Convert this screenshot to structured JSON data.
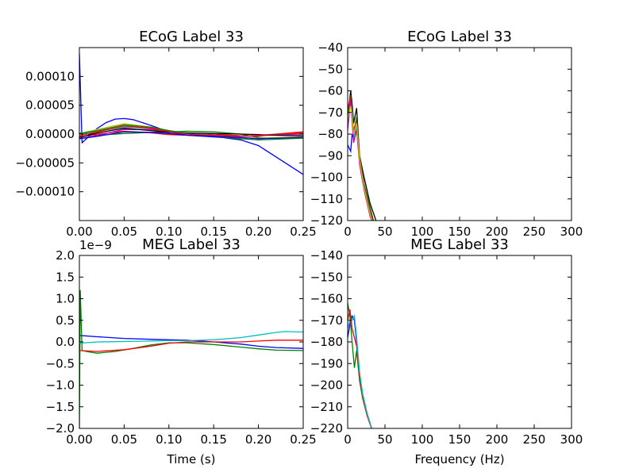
{
  "chart_data": [
    {
      "id": "ecog-time",
      "type": "line",
      "title": "ECoG Label 33",
      "xlabel": "",
      "ylabel": "",
      "xlim": [
        0,
        0.25
      ],
      "ylim": [
        -0.00015,
        0.00015
      ],
      "xticks": [
        0.0,
        0.05,
        0.1,
        0.15,
        0.2,
        0.25
      ],
      "xtick_labels": [
        "0.00",
        "0.05",
        "0.10",
        "0.15",
        "0.20",
        "0.25"
      ],
      "yticks": [
        -0.0001,
        -5e-05,
        0.0,
        5e-05,
        0.0001
      ],
      "ytick_labels": [
        "−0.00010",
        "−0.00005",
        "0.00000",
        "0.00005",
        "0.00010"
      ],
      "offset_text": "",
      "grid": false,
      "series": [
        {
          "color": "#0000ff",
          "x": [
            0,
            0.003,
            0.01,
            0.02,
            0.03,
            0.04,
            0.05,
            0.06,
            0.08,
            0.1,
            0.12,
            0.14,
            0.16,
            0.18,
            0.2,
            0.21,
            0.22,
            0.23,
            0.24,
            0.25
          ],
          "y": [
            0.00014,
            -1.5e-05,
            -5e-06,
            1e-05,
            2e-05,
            2.6e-05,
            2.7e-05,
            2.5e-05,
            1.5e-05,
            4e-06,
            -2e-06,
            -4e-06,
            -6e-06,
            -1e-05,
            -2e-05,
            -3e-05,
            -4e-05,
            -5e-05,
            -6e-05,
            -7e-05
          ]
        },
        {
          "color": "#008000",
          "x": [
            0,
            0.02,
            0.05,
            0.08,
            0.1,
            0.12,
            0.15,
            0.18,
            0.2,
            0.22,
            0.25
          ],
          "y": [
            2e-06,
            -2e-06,
            1e-06,
            3e-06,
            4e-06,
            5e-06,
            4e-06,
            0.0,
            -6e-06,
            -8e-06,
            -5e-06
          ]
        },
        {
          "color": "#ff0000",
          "x": [
            0,
            0.02,
            0.05,
            0.08,
            0.1,
            0.12,
            0.15,
            0.18,
            0.2,
            0.22,
            0.25
          ],
          "y": [
            -5e-06,
            0.0,
            5e-06,
            2e-06,
            -1e-06,
            -2e-06,
            0.0,
            -3e-06,
            -4e-06,
            0.0,
            4e-06
          ]
        },
        {
          "color": "#00bfbf",
          "x": [
            0,
            0.02,
            0.05,
            0.08,
            0.1,
            0.12,
            0.15,
            0.18,
            0.2,
            0.22,
            0.25
          ],
          "y": [
            0.0,
            5e-06,
            1.2e-05,
            1e-05,
            6e-06,
            2e-06,
            -2e-06,
            -4e-06,
            -3e-06,
            -1e-06,
            1e-06
          ]
        },
        {
          "color": "#bf00bf",
          "x": [
            0,
            0.02,
            0.05,
            0.08,
            0.1,
            0.12,
            0.15,
            0.18,
            0.2,
            0.22,
            0.25
          ],
          "y": [
            -8e-06,
            -2e-06,
            8e-06,
            8e-06,
            4e-06,
            1e-06,
            -2e-06,
            -4e-06,
            -3e-06,
            -1e-06,
            0.0
          ]
        },
        {
          "color": "#bfbf00",
          "x": [
            0,
            0.02,
            0.05,
            0.08,
            0.1,
            0.12,
            0.15,
            0.18,
            0.2,
            0.22,
            0.25
          ],
          "y": [
            1e-06,
            8e-06,
            1.8e-05,
            1.2e-05,
            6e-06,
            1e-06,
            -3e-06,
            -6e-06,
            -7e-06,
            -6e-06,
            -4e-06
          ]
        },
        {
          "color": "#000000",
          "x": [
            0,
            0.02,
            0.05,
            0.08,
            0.1,
            0.12,
            0.15,
            0.18,
            0.2,
            0.22,
            0.25
          ],
          "y": [
            -6e-06,
            2e-06,
            1e-05,
            6e-06,
            3e-06,
            2e-06,
            1e-06,
            0.0,
            -1e-06,
            -2e-06,
            -3e-06
          ]
        },
        {
          "color": "#008000",
          "x": [
            0,
            0.02,
            0.05,
            0.08,
            0.1,
            0.12,
            0.15,
            0.18,
            0.2,
            0.22,
            0.25
          ],
          "y": [
            1e-06,
            6e-06,
            1.6e-05,
            1.2e-05,
            6e-06,
            1e-06,
            -4e-06,
            -8e-06,
            -1e-05,
            -9e-06,
            -7e-06
          ]
        },
        {
          "color": "#ff0000",
          "x": [
            0,
            0.02,
            0.05,
            0.08,
            0.1,
            0.12,
            0.15,
            0.18,
            0.2,
            0.22,
            0.25
          ],
          "y": [
            -3e-06,
            4e-06,
            1.4e-05,
            1e-05,
            4e-06,
            0.0,
            -3e-06,
            -4e-06,
            -2e-06,
            0.0,
            2e-06
          ]
        },
        {
          "color": "#0000ff",
          "x": [
            0,
            0.02,
            0.05,
            0.08,
            0.1,
            0.12,
            0.15,
            0.18,
            0.2,
            0.22,
            0.25
          ],
          "y": [
            -8e-06,
            -4e-06,
            4e-06,
            3e-06,
            1e-06,
            -2e-06,
            -4e-06,
            -6e-06,
            -8e-06,
            -7e-06,
            -6e-06
          ]
        }
      ]
    },
    {
      "id": "ecog-psd",
      "type": "line",
      "title": "ECoG Label 33",
      "xlabel": "",
      "ylabel": "",
      "xlim": [
        0,
        300
      ],
      "ylim": [
        -120,
        -40
      ],
      "xticks": [
        0,
        50,
        100,
        150,
        200,
        250,
        300
      ],
      "xtick_labels": [
        "0",
        "50",
        "100",
        "150",
        "200",
        "250",
        "300"
      ],
      "yticks": [
        -120,
        -110,
        -100,
        -90,
        -80,
        -70,
        -60,
        -50,
        -40
      ],
      "ytick_labels": [
        "−120",
        "−110",
        "−100",
        "−90",
        "−80",
        "−70",
        "−60",
        "−50",
        "−40"
      ],
      "offset_text": "",
      "grid": false,
      "series": [
        {
          "color": "#000000",
          "x": [
            0,
            4,
            6,
            8,
            12,
            16,
            22,
            30,
            40
          ],
          "y": [
            -72,
            -60,
            -66,
            -75,
            -68,
            -90,
            -100,
            -112,
            -122
          ]
        },
        {
          "color": "#0000ff",
          "x": [
            0,
            4,
            6,
            8,
            12,
            16,
            22,
            30,
            36
          ],
          "y": [
            -85,
            -88,
            -80,
            -82,
            -78,
            -92,
            -104,
            -114,
            -122
          ]
        },
        {
          "color": "#008000",
          "x": [
            0,
            4,
            6,
            8,
            12,
            16,
            22,
            30,
            36
          ],
          "y": [
            -70,
            -62,
            -70,
            -80,
            -72,
            -90,
            -103,
            -114,
            -122
          ]
        },
        {
          "color": "#ff0000",
          "x": [
            0,
            4,
            6,
            8,
            12,
            16,
            22,
            30,
            36
          ],
          "y": [
            -68,
            -63,
            -72,
            -78,
            -74,
            -91,
            -104,
            -116,
            -122
          ]
        },
        {
          "color": "#00bfbf",
          "x": [
            0,
            4,
            6,
            8,
            12,
            16,
            22,
            30,
            34
          ],
          "y": [
            -75,
            -66,
            -70,
            -82,
            -76,
            -93,
            -105,
            -117,
            -122
          ]
        },
        {
          "color": "#bf00bf",
          "x": [
            0,
            4,
            6,
            8,
            12,
            16,
            22,
            30,
            34
          ],
          "y": [
            -78,
            -64,
            -74,
            -84,
            -78,
            -94,
            -106,
            -118,
            -122
          ]
        },
        {
          "color": "#bfbf00",
          "x": [
            0,
            4,
            6,
            8,
            12,
            16,
            22,
            30,
            34
          ],
          "y": [
            -73,
            -67,
            -71,
            -80,
            -75,
            -92,
            -105,
            -117,
            -122
          ]
        }
      ]
    },
    {
      "id": "meg-time",
      "type": "line",
      "title": "MEG Label 33",
      "xlabel": "Time (s)",
      "ylabel": "",
      "xlim": [
        0,
        0.25
      ],
      "ylim": [
        -2e-09,
        2e-09
      ],
      "xticks": [
        0.0,
        0.05,
        0.1,
        0.15,
        0.2,
        0.25
      ],
      "xtick_labels": [
        "0.00",
        "0.05",
        "0.10",
        "0.15",
        "0.20",
        "0.25"
      ],
      "yticks": [
        -2e-09,
        -1.5e-09,
        -1e-09,
        -5e-10,
        0.0,
        5e-10,
        1e-09,
        1.5e-09,
        2e-09
      ],
      "ytick_labels": [
        "−2.0",
        "−1.5",
        "−1.0",
        "−0.5",
        "0.0",
        "0.5",
        "1.0",
        "1.5",
        "2.0"
      ],
      "offset_text": "1e−9",
      "grid": false,
      "series": [
        {
          "color": "#0000ff",
          "x": [
            0,
            0.02,
            0.05,
            0.08,
            0.1,
            0.12,
            0.15,
            0.18,
            0.2,
            0.22,
            0.25
          ],
          "y": [
            1.5e-10,
            1.2e-10,
            8e-11,
            6e-11,
            5e-11,
            4e-11,
            0.0,
            -5e-11,
            -1e-10,
            -1.3e-10,
            -1.5e-10
          ]
        },
        {
          "color": "#008000",
          "x": [
            0,
            0.001,
            0.003,
            0.01,
            0.02,
            0.04,
            0.06,
            0.08,
            0.1,
            0.12,
            0.15,
            0.18,
            0.2,
            0.22,
            0.25
          ],
          "y": [
            -2e-09,
            1.2e-09,
            -2e-10,
            -2.3e-10,
            -2.6e-10,
            -2.2e-10,
            -1.5e-10,
            -7e-11,
            -2e-11,
            -2e-11,
            -6e-11,
            -1.2e-10,
            -1.6e-10,
            -1.9e-10,
            -2e-10
          ]
        },
        {
          "color": "#ff0000",
          "x": [
            0,
            0.02,
            0.05,
            0.08,
            0.1,
            0.12,
            0.15,
            0.18,
            0.2,
            0.22,
            0.25
          ],
          "y": [
            -2e-10,
            -2.2e-10,
            -1.8e-10,
            -1e-10,
            -3e-11,
            0.0,
            0.0,
            0.0,
            2e-11,
            4e-11,
            4e-11
          ]
        },
        {
          "color": "#00bfbf",
          "x": [
            0,
            0.02,
            0.05,
            0.08,
            0.1,
            0.12,
            0.15,
            0.18,
            0.2,
            0.22,
            0.23,
            0.25
          ],
          "y": [
            -3e-11,
            0.0,
            1e-11,
            2e-11,
            3e-11,
            3e-11,
            5e-11,
            1e-10,
            1.6e-10,
            2.2e-10,
            2.4e-10,
            2.3e-10
          ]
        }
      ]
    },
    {
      "id": "meg-psd",
      "type": "line",
      "title": "MEG Label 33",
      "xlabel": "Frequency (Hz)",
      "ylabel": "",
      "xlim": [
        0,
        300
      ],
      "ylim": [
        -220,
        -140
      ],
      "xticks": [
        0,
        50,
        100,
        150,
        200,
        250,
        300
      ],
      "xtick_labels": [
        "0",
        "50",
        "100",
        "150",
        "200",
        "250",
        "300"
      ],
      "yticks": [
        -220,
        -210,
        -200,
        -190,
        -180,
        -170,
        -160,
        -150,
        -140
      ],
      "ytick_labels": [
        "−220",
        "−210",
        "−200",
        "−190",
        "−180",
        "−170",
        "−160",
        "−150",
        "−140"
      ],
      "offset_text": "",
      "grid": false,
      "series": [
        {
          "color": "#0000ff",
          "x": [
            0,
            3,
            6,
            9,
            12,
            16,
            20,
            26,
            34
          ],
          "y": [
            -178,
            -172,
            -168,
            -170,
            -180,
            -195,
            -204,
            -213,
            -222
          ]
        },
        {
          "color": "#008000",
          "x": [
            0,
            3,
            6,
            9,
            12,
            16,
            20,
            26,
            34
          ],
          "y": [
            -162,
            -168,
            -180,
            -192,
            -184,
            -198,
            -206,
            -214,
            -222
          ]
        },
        {
          "color": "#ff0000",
          "x": [
            0,
            3,
            6,
            9,
            12,
            16,
            20,
            26,
            34
          ],
          "y": [
            -170,
            -165,
            -174,
            -178,
            -182,
            -196,
            -205,
            -214,
            -222
          ]
        },
        {
          "color": "#00bfbf",
          "x": [
            0,
            3,
            6,
            9,
            12,
            16,
            20,
            26,
            34
          ],
          "y": [
            -174,
            -170,
            -170,
            -168,
            -178,
            -194,
            -204,
            -213,
            -222
          ]
        }
      ]
    }
  ]
}
